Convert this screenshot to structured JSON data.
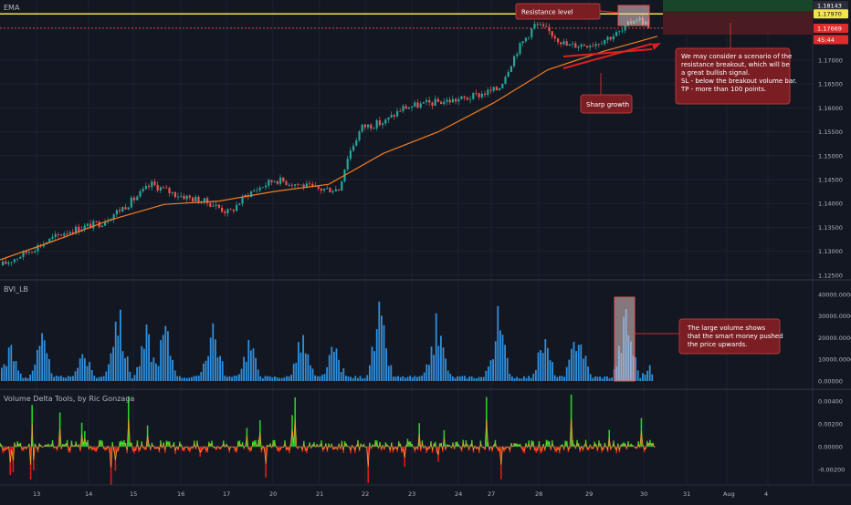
{
  "colors": {
    "background": "#131722",
    "up": "#26a69a",
    "down": "#ef5350",
    "ema": "#f57c1f",
    "resistance": "#f5e44a",
    "volume_bar": "#2f8fdd",
    "delta_pos": "#26d126",
    "delta_neg": "#e01a1a",
    "delta_line": "#f0a030",
    "annotation": "#7a1e23",
    "arrow": "#e02020"
  },
  "panes": {
    "price": {
      "label": "EMA"
    },
    "volume": {
      "label": "BVI_LB"
    },
    "delta": {
      "label": "Volume Delta Tools, by Ric Gonzaga"
    }
  },
  "price_axis": {
    "ticks": [
      "1.17000",
      "1.16500",
      "1.16000",
      "1.15500",
      "1.15000",
      "1.14500",
      "1.14000",
      "1.13500",
      "1.13000",
      "1.12500"
    ],
    "badges": [
      {
        "label": "1.18143",
        "value": 1.18143,
        "style": "dark"
      },
      {
        "label": "1.17970",
        "value": 1.1797,
        "style": "yellow"
      },
      {
        "label": "1.17669",
        "value": 1.17669,
        "style": "red"
      },
      {
        "label": "45:44",
        "value": 1.1743,
        "style": "red"
      }
    ]
  },
  "volume_axis": {
    "ticks": [
      "40000.00000",
      "30000.00000",
      "20000.00000",
      "10000.00000",
      "0.00000"
    ]
  },
  "delta_axis": {
    "ticks": [
      "0.00400",
      "0.00200",
      "0.00000",
      "-0.00200"
    ]
  },
  "time_axis": {
    "ticks": [
      "13",
      "14",
      "15",
      "16",
      "17",
      "20",
      "21",
      "22",
      "23",
      "24",
      "27",
      "28",
      "29",
      "30",
      "31",
      "Aug",
      "4"
    ]
  },
  "annotations": {
    "resistance": "Resistance level",
    "scenario": [
      "We may consider a scenario of the",
      "resistance breakout, which will be",
      "a great bullish signal.",
      "SL - below the breakout volume bar.",
      "TP - more than 100 points."
    ],
    "growth": "Sharp growth",
    "volume": [
      "The large volume shows",
      "that the smart money pushed",
      "the price upwards."
    ]
  },
  "chart_data": [
    {
      "type": "candlestick",
      "pane": "price",
      "ylim": [
        1.124,
        1.1826
      ],
      "x_range": [
        "13",
        "4"
      ],
      "series": [
        {
          "name": "EMA",
          "points": [
            [
              0,
              1.1282
            ],
            [
              60,
              1.1322
            ],
            [
              120,
              1.1365
            ],
            [
              180,
              1.1398
            ],
            [
              240,
              1.1405
            ],
            [
              300,
              1.1425
            ],
            [
              360,
              1.144
            ],
            [
              420,
              1.1505
            ],
            [
              480,
              1.155
            ],
            [
              540,
              1.161
            ],
            [
              600,
              1.168
            ],
            [
              660,
              1.1718
            ],
            [
              720,
              1.175
            ]
          ]
        }
      ],
      "price_path": [
        [
          0,
          1.127
        ],
        [
          30,
          1.13
        ],
        [
          70,
          1.134
        ],
        [
          110,
          1.136
        ],
        [
          140,
          1.14
        ],
        [
          165,
          1.144
        ],
        [
          190,
          1.142
        ],
        [
          230,
          1.14
        ],
        [
          250,
          1.138
        ],
        [
          270,
          1.142
        ],
        [
          300,
          1.145
        ],
        [
          325,
          1.144
        ],
        [
          345,
          1.143
        ],
        [
          370,
          1.143
        ],
        [
          380,
          1.15
        ],
        [
          395,
          1.156
        ],
        [
          420,
          1.157
        ],
        [
          440,
          1.16
        ],
        [
          470,
          1.161
        ],
        [
          510,
          1.162
        ],
        [
          545,
          1.164
        ],
        [
          565,
          1.172
        ],
        [
          585,
          1.1775
        ],
        [
          600,
          1.176
        ],
        [
          620,
          1.173
        ],
        [
          650,
          1.1735
        ],
        [
          680,
          1.176
        ],
        [
          695,
          1.179
        ],
        [
          712,
          1.177
        ]
      ],
      "resistance_level": 1.1797
    },
    {
      "type": "bar",
      "pane": "volume",
      "name": "BVI_LB",
      "ylim": [
        0,
        42000
      ],
      "peaks": [
        [
          10,
          20000
        ],
        [
          45,
          24000
        ],
        [
          90,
          18000
        ],
        [
          128,
          43000
        ],
        [
          160,
          28000
        ],
        [
          180,
          32000
        ],
        [
          232,
          35000
        ],
        [
          272,
          24000
        ],
        [
          330,
          26000
        ],
        [
          365,
          20000
        ],
        [
          415,
          39000
        ],
        [
          478,
          35000
        ],
        [
          545,
          37000
        ],
        [
          595,
          25000
        ],
        [
          632,
          32000
        ],
        [
          685,
          40000
        ],
        [
          710,
          8000
        ]
      ]
    },
    {
      "type": "area",
      "pane": "delta",
      "name": "Volume Delta Tools, by Ric Gonzaga",
      "ylim": [
        -0.0032,
        0.0048
      ]
    }
  ]
}
